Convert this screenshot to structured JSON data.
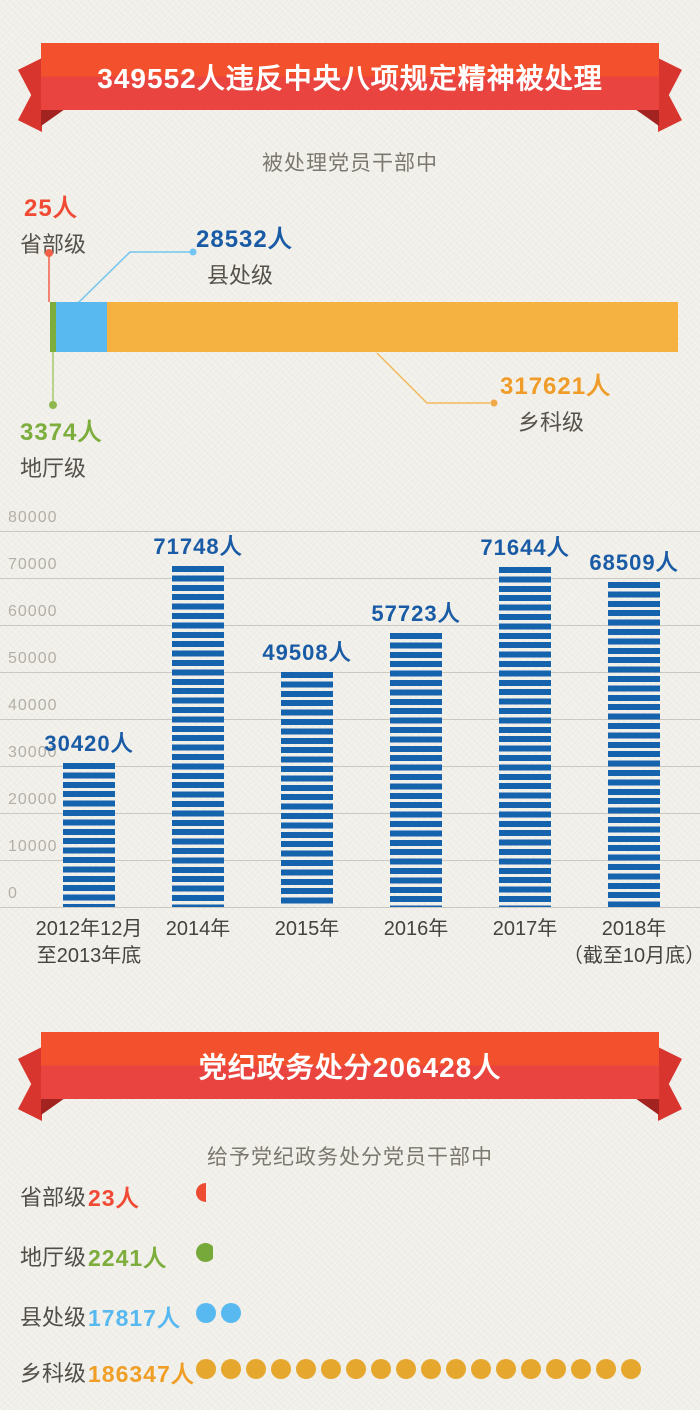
{
  "banner1": {
    "title": "349552人违反中央八项规定精神被处理"
  },
  "section1": {
    "subtitle": "被处理党员干部中",
    "annotations": [
      {
        "id": "shengbuji",
        "value": "25人",
        "name": "省部级",
        "color": "#f04a35"
      },
      {
        "id": "xianchuji",
        "value": "28532人",
        "name": "县处级",
        "color": "#1a5ba6"
      },
      {
        "id": "ditingji",
        "value": "3374人",
        "name": "地厅级",
        "color": "#7cad3d"
      },
      {
        "id": "xiangkeji",
        "value": "317621人",
        "name": "乡科级",
        "color": "#f09c28"
      }
    ]
  },
  "banner2": {
    "title": "党纪政务处分206428人"
  },
  "section2": {
    "subtitle": "给予党纪政务处分党员干部中"
  },
  "chart_data": [
    {
      "type": "stacked_bar",
      "subtitle": "被处理党员干部中",
      "categories": [
        "省部级",
        "地厅级",
        "县处级",
        "乡科级"
      ],
      "values": [
        25,
        3374,
        28532,
        317621
      ],
      "labels": [
        "25人",
        "3374人",
        "28532人",
        "317621人"
      ],
      "total": 349552,
      "colors": [
        "#f04a35",
        "#7cad3d",
        "#58b9f1",
        "#f5b240"
      ]
    },
    {
      "type": "bar",
      "categories": [
        [
          "2012年12月",
          "至2013年底"
        ],
        [
          "2014年",
          ""
        ],
        [
          "2015年",
          ""
        ],
        [
          "2016年",
          ""
        ],
        [
          "2017年",
          ""
        ],
        [
          "2018年",
          "（截至10月底）"
        ]
      ],
      "values": [
        30420,
        71748,
        49508,
        57723,
        71644,
        68509
      ],
      "labels": [
        "30420人",
        "71748人",
        "49508人",
        "57723人",
        "71644人",
        "68509人"
      ],
      "ylim": [
        0,
        80000
      ],
      "ytick_step": 10000,
      "yticks": [
        "0",
        "10000",
        "20000",
        "30000",
        "40000",
        "50000",
        "60000",
        "70000",
        "80000"
      ],
      "grid": true,
      "legend": "none",
      "bar_color": "#1562ad",
      "value_label_color": "#1a5ba6"
    },
    {
      "type": "pictogram",
      "subtitle": "给予党纪政务处分党员干部中",
      "rows": [
        {
          "level": "省部级",
          "value": 23,
          "label": "23人",
          "color": "#f04a35",
          "dot_color": "#ee4b33",
          "dots": 1,
          "dot_shape": "half"
        },
        {
          "level": "地厅级",
          "value": 2241,
          "label": "2241人",
          "color": "#7cad3d",
          "dot_color": "#76a83a",
          "dots": 1,
          "dot_shape": "clipped"
        },
        {
          "level": "县处级",
          "value": 17817,
          "label": "17817人",
          "color": "#58b9f1",
          "dot_color": "#58b9f1",
          "dots": 2,
          "dot_shape": "circle"
        },
        {
          "level": "乡科级",
          "value": 186347,
          "label": "186347人",
          "color": "#f09e26",
          "dot_color": "#e6a72e",
          "dots": 18,
          "dot_shape": "circle"
        }
      ]
    }
  ]
}
